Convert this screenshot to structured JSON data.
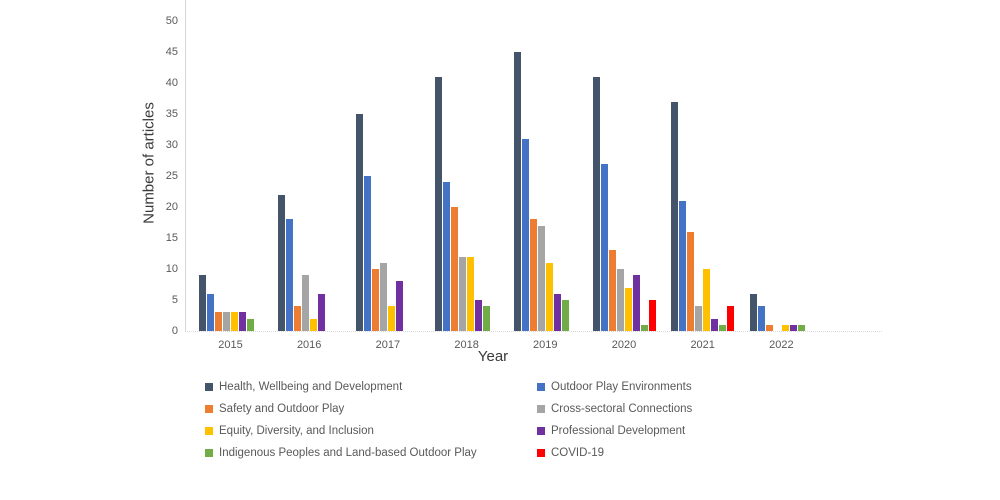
{
  "chart_data": {
    "type": "bar",
    "title": "",
    "xlabel": "Year",
    "ylabel": "Number of articles",
    "ylim": [
      0,
      50
    ],
    "yticks": [
      0,
      5,
      10,
      15,
      20,
      25,
      30,
      35,
      40,
      45,
      50
    ],
    "grid": false,
    "legend_position": "bottom",
    "legend_columns": 2,
    "categories": [
      "2015",
      "2016",
      "2017",
      "2018",
      "2019",
      "2020",
      "2021",
      "2022"
    ],
    "series": [
      {
        "name": "Health, Wellbeing and Development",
        "color": "#44546A",
        "values": [
          9,
          22,
          35,
          41,
          45,
          41,
          37,
          6
        ]
      },
      {
        "name": "Outdoor Play Environments",
        "color": "#4472C4",
        "values": [
          6,
          18,
          25,
          24,
          31,
          27,
          21,
          4
        ]
      },
      {
        "name": "Safety and Outdoor Play",
        "color": "#ED7D31",
        "values": [
          3,
          4,
          10,
          20,
          18,
          13,
          16,
          1
        ]
      },
      {
        "name": "Cross-sectoral Connections",
        "color": "#A5A5A5",
        "values": [
          3,
          9,
          11,
          12,
          17,
          10,
          4,
          0
        ]
      },
      {
        "name": "Equity, Diversity, and Inclusion",
        "color": "#FFC000",
        "values": [
          3,
          2,
          4,
          12,
          11,
          7,
          10,
          1
        ]
      },
      {
        "name": "Professional Development",
        "color": "#7030A0",
        "values": [
          3,
          6,
          8,
          5,
          6,
          9,
          2,
          1
        ]
      },
      {
        "name": "Indigenous Peoples and Land-based Outdoor Play",
        "color": "#70AD47",
        "values": [
          2,
          0,
          0,
          4,
          5,
          1,
          1,
          1
        ]
      },
      {
        "name": "COVID-19",
        "color": "#FF0000",
        "values": [
          0,
          0,
          0,
          0,
          0,
          5,
          4,
          0
        ]
      }
    ]
  }
}
